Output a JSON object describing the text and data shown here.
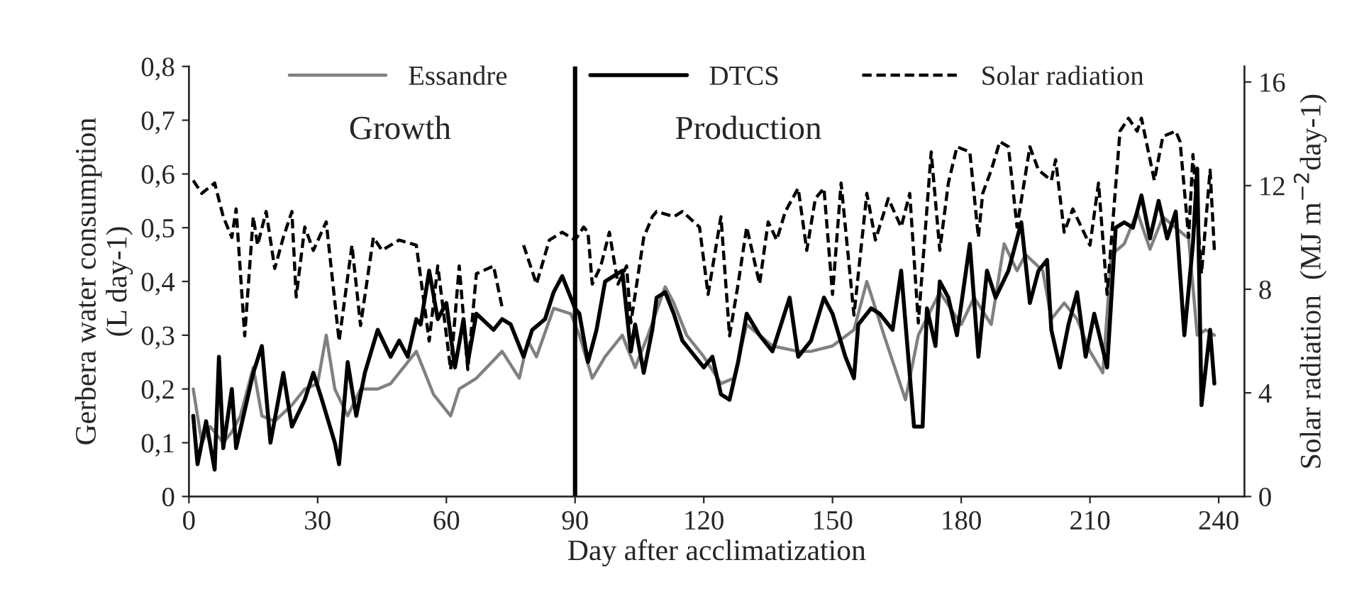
{
  "chart_data": {
    "type": "line",
    "xlabel": "Day after acclimatization",
    "ylabel": "Gerbera water consumption\n(L day-1)",
    "y2label": "Solar radiation  (MJ m$^{−2}$day-1)",
    "annotations": [
      "Growth",
      "Production"
    ],
    "series": [
      {
        "name": "Essandre",
        "color": "#808080",
        "line_style": "solid",
        "x": [
          1,
          3,
          5,
          8,
          10,
          12,
          15,
          17,
          20,
          24,
          27,
          30,
          32,
          34,
          37,
          40,
          44,
          47,
          50,
          53,
          57,
          61,
          63,
          67,
          73,
          77,
          79,
          81,
          85,
          89,
          91,
          94,
          97,
          101,
          104,
          107,
          111,
          113,
          116,
          120,
          124,
          127,
          130,
          136,
          142,
          145,
          150,
          155,
          158,
          162,
          167,
          170,
          175,
          180,
          183,
          187,
          190,
          193,
          195,
          199,
          201,
          204,
          207,
          210,
          213,
          215,
          218,
          221,
          224,
          227,
          230,
          233,
          235,
          237,
          239
        ],
        "values": [
          0.2,
          0.1,
          0.13,
          0.1,
          0.12,
          0.15,
          0.24,
          0.15,
          0.14,
          0.17,
          0.2,
          0.21,
          0.3,
          0.2,
          0.15,
          0.2,
          0.2,
          0.21,
          0.24,
          0.27,
          0.19,
          0.15,
          0.2,
          0.22,
          0.27,
          0.22,
          0.29,
          0.26,
          0.35,
          0.34,
          0.3,
          0.22,
          0.26,
          0.3,
          0.24,
          0.3,
          0.39,
          0.36,
          0.3,
          0.26,
          0.21,
          0.22,
          0.32,
          0.28,
          0.27,
          0.27,
          0.28,
          0.31,
          0.4,
          0.3,
          0.18,
          0.3,
          0.38,
          0.32,
          0.37,
          0.32,
          0.47,
          0.42,
          0.45,
          0.42,
          0.33,
          0.36,
          0.33,
          0.27,
          0.23,
          0.45,
          0.47,
          0.53,
          0.46,
          0.52,
          0.5,
          0.48,
          0.3,
          0.31,
          0.3
        ]
      },
      {
        "name": "DTCS",
        "color": "#000000",
        "line_style": "solid",
        "x": [
          1,
          2,
          4,
          6,
          7,
          8,
          10,
          11,
          13,
          15,
          17,
          19,
          22,
          24,
          27,
          29,
          31,
          34,
          35,
          37,
          39,
          41,
          44,
          47,
          49,
          51,
          53,
          54,
          56,
          58,
          60,
          62,
          64,
          65,
          67,
          71,
          73,
          75,
          78,
          80,
          83,
          85,
          87,
          90,
          91,
          93,
          95,
          97,
          99,
          101,
          103,
          104,
          106,
          108,
          109,
          111,
          113,
          115,
          117,
          120,
          122,
          124,
          126,
          128,
          130,
          133,
          136,
          140,
          142,
          145,
          148,
          150,
          153,
          155,
          156,
          159,
          161,
          164,
          166,
          169,
          171,
          172,
          174,
          175,
          177,
          179,
          182,
          184,
          186,
          188,
          191,
          194,
          196,
          198,
          200,
          201,
          203,
          205,
          207,
          209,
          211,
          214,
          216,
          218,
          220,
          222,
          224,
          226,
          228,
          230,
          232,
          234,
          235,
          236,
          238,
          239
        ],
        "values": [
          0.15,
          0.06,
          0.14,
          0.05,
          0.26,
          0.09,
          0.2,
          0.09,
          0.16,
          0.23,
          0.28,
          0.1,
          0.23,
          0.13,
          0.18,
          0.23,
          0.18,
          0.1,
          0.06,
          0.25,
          0.15,
          0.23,
          0.31,
          0.26,
          0.29,
          0.26,
          0.33,
          0.32,
          0.42,
          0.33,
          0.36,
          0.24,
          0.33,
          0.25,
          0.34,
          0.31,
          0.33,
          0.32,
          0.26,
          0.31,
          0.33,
          0.38,
          0.41,
          0.35,
          0.34,
          0.25,
          0.31,
          0.4,
          0.41,
          0.42,
          0.27,
          0.32,
          0.23,
          0.31,
          0.37,
          0.38,
          0.34,
          0.29,
          0.27,
          0.24,
          0.26,
          0.19,
          0.18,
          0.25,
          0.34,
          0.3,
          0.27,
          0.37,
          0.26,
          0.29,
          0.37,
          0.34,
          0.26,
          0.22,
          0.32,
          0.35,
          0.34,
          0.31,
          0.42,
          0.13,
          0.13,
          0.35,
          0.28,
          0.4,
          0.37,
          0.3,
          0.47,
          0.26,
          0.42,
          0.37,
          0.42,
          0.51,
          0.36,
          0.42,
          0.44,
          0.31,
          0.24,
          0.32,
          0.38,
          0.26,
          0.34,
          0.24,
          0.5,
          0.51,
          0.5,
          0.56,
          0.48,
          0.55,
          0.48,
          0.53,
          0.3,
          0.47,
          0.61,
          0.17,
          0.31,
          0.21
        ]
      },
      {
        "name": "Solar radiation",
        "color": "#000000",
        "line_style": "dashed",
        "axis": "y2",
        "x": [
          1,
          3,
          6,
          8,
          10,
          11,
          13,
          15,
          16,
          18,
          20,
          22,
          24,
          25,
          27,
          29,
          32,
          35,
          38,
          40,
          43,
          45,
          49,
          53,
          56,
          58,
          61,
          63,
          65,
          67,
          71,
          73,
          76,
          78,
          81,
          84,
          87,
          90,
          92,
          93,
          94,
          96,
          98,
          100,
          102,
          103,
          106,
          108,
          109,
          113,
          115,
          119,
          121,
          124,
          126,
          128,
          130,
          133,
          135,
          137,
          139,
          142,
          144,
          146,
          148,
          150,
          152,
          155,
          158,
          160,
          163,
          166,
          168,
          170,
          173,
          175,
          177,
          179,
          182,
          184,
          185,
          187,
          189,
          191,
          193,
          196,
          198,
          201,
          202,
          204,
          206,
          208,
          210,
          212,
          214,
          217,
          219,
          221,
          222,
          225,
          227,
          230,
          231,
          233,
          234,
          236,
          238,
          239
        ],
        "values": [
          12.2,
          11.7,
          12.1,
          10.8,
          10.0,
          11.1,
          6.2,
          10.8,
          9.7,
          11.0,
          8.8,
          10.0,
          11.0,
          7.7,
          10.4,
          9.5,
          10.6,
          6.0,
          9.7,
          6.6,
          10.0,
          9.5,
          9.9,
          9.7,
          6.0,
          8.9,
          4.9,
          8.9,
          4.9,
          8.6,
          8.9,
          7.3,
          null,
          9.7,
          8.2,
          9.9,
          10.2,
          9.9,
          10.4,
          10.2,
          8.2,
          8.9,
          10.2,
          8.2,
          8.9,
          6.7,
          10.0,
          10.8,
          11.0,
          10.8,
          11.0,
          10.4,
          7.8,
          10.8,
          6.2,
          8.2,
          10.4,
          8.2,
          10.6,
          9.9,
          11.0,
          11.9,
          9.5,
          11.5,
          11.9,
          7.8,
          12.1,
          7.0,
          11.7,
          9.9,
          11.5,
          10.4,
          11.7,
          6.7,
          13.3,
          9.5,
          12.1,
          13.5,
          13.3,
          10.0,
          11.7,
          12.6,
          13.7,
          13.5,
          10.4,
          13.5,
          12.6,
          12.2,
          13.0,
          10.2,
          11.1,
          10.4,
          9.7,
          12.1,
          7.8,
          14.1,
          14.6,
          14.1,
          14.6,
          12.2,
          13.9,
          14.1,
          13.7,
          10.0,
          13.2,
          8.6,
          12.6,
          9.5
        ]
      }
    ],
    "ref_lines": [
      {
        "axis": "x",
        "value": 90,
        "color": "#000000"
      }
    ],
    "xlim": [
      0,
      246
    ],
    "xticks": [
      0,
      30,
      60,
      90,
      120,
      150,
      180,
      210,
      240
    ],
    "ylim": [
      0,
      0.8
    ],
    "yticks": [
      {
        "value": 0,
        "label": "0"
      },
      {
        "value": 0.1,
        "label": "0,1"
      },
      {
        "value": 0.2,
        "label": "0,2"
      },
      {
        "value": 0.3,
        "label": "0,3"
      },
      {
        "value": 0.4,
        "label": "0,4"
      },
      {
        "value": 0.5,
        "label": "0,5"
      },
      {
        "value": 0.6,
        "label": "0,6"
      },
      {
        "value": 0.7,
        "label": "0,7"
      },
      {
        "value": 0.8,
        "label": "0,8"
      }
    ],
    "y2lim": [
      0,
      16.6
    ],
    "y2ticks": [
      0,
      4,
      8,
      12,
      16
    ],
    "grid": false,
    "legend": "top"
  }
}
